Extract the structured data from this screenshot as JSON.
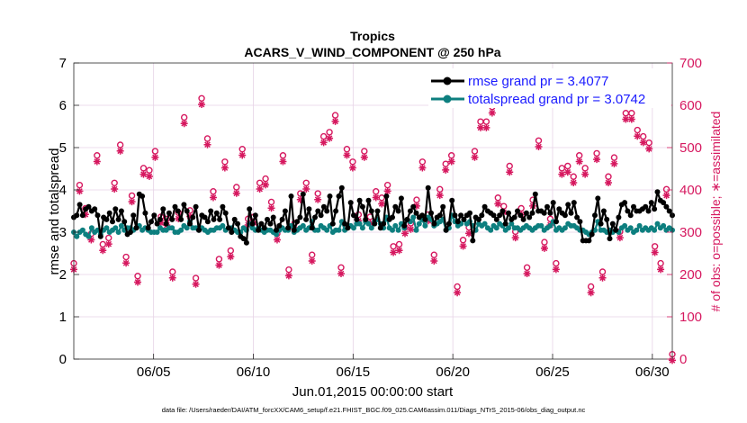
{
  "chart_data": {
    "type": "line",
    "title": "Tropics",
    "subtitle": "ACARS_V_WIND_COMPONENT @ 250 hPa",
    "xlabel": "Jun.01,2015 00:00:00 start",
    "ylabel_left": "rmse and totalspread",
    "ylabel_right": "# of obs: o=possible; ∗=assimilated",
    "xlim": [
      1,
      31
    ],
    "ylim_left": [
      0,
      7
    ],
    "ylim_right": [
      0,
      700
    ],
    "x_ticks": [
      5,
      10,
      15,
      20,
      25,
      30
    ],
    "x_tick_labels": [
      "06/05",
      "06/10",
      "06/15",
      "06/20",
      "06/25",
      "06/30"
    ],
    "y_left_ticks": [
      "0",
      "1",
      "2",
      "3",
      "4",
      "5",
      "6",
      "7"
    ],
    "y_right_ticks": [
      "0",
      "100",
      "200",
      "300",
      "400",
      "500",
      "600",
      "700"
    ],
    "grid": true,
    "legend_position": "top-right",
    "colors": {
      "rmse": "#000000",
      "spread": "#0d7f7f",
      "obs": "#d6185f",
      "legend_text": "#1a1aff"
    },
    "series": [
      {
        "name": "rmse grand pr = 3.4077",
        "values": [
          3.35,
          3.4,
          3.65,
          3.4,
          3.55,
          3.6,
          3.5,
          3.55,
          3.4,
          2.9,
          3.35,
          3.3,
          3.45,
          3.25,
          3.55,
          3.3,
          3.5,
          3.25,
          2.95,
          3.0,
          3.4,
          3.1,
          3.9,
          3.85,
          3.45,
          3.1,
          3.25,
          3.4,
          3.2,
          3.3,
          3.55,
          3.2,
          3.45,
          3.3,
          3.6,
          3.5,
          3.3,
          3.65,
          3.5,
          3.2,
          3.35,
          3.6,
          3.05,
          3.4,
          3.35,
          3.25,
          3.5,
          3.3,
          3.45,
          3.3,
          3.6,
          3.45,
          3.1,
          3.0,
          3.3,
          3.2,
          2.9,
          2.85,
          2.75,
          3.55,
          3.2,
          3.4,
          3.05,
          3.2,
          3.1,
          3.3,
          3.2,
          3.35,
          3.05,
          3.15,
          3.3,
          3.5,
          3.1,
          3.85,
          3.05,
          3.25,
          3.35,
          3.9,
          3.3,
          3.55,
          3.1,
          3.35,
          3.5,
          3.4,
          3.6,
          3.5,
          3.85,
          3.2,
          3.5,
          3.85,
          4.05,
          3.2,
          3.1,
          3.7,
          3.4,
          3.3,
          3.75,
          3.6,
          3.3,
          3.75,
          3.5,
          3.2,
          3.5,
          3.1,
          3.2,
          3.85,
          3.3,
          3.35,
          3.6,
          3.5,
          3.8,
          3.15,
          3.3,
          3.5,
          3.6,
          3.45,
          3.35,
          3.4,
          3.3,
          4.05,
          3.45,
          3.2,
          3.35,
          3.4,
          3.6,
          3.05,
          3.2,
          3.75,
          3.4,
          3.25,
          3.4,
          3.3,
          3.4,
          3.45,
          2.8,
          3.35,
          3.3,
          3.4,
          3.6,
          3.5,
          3.45,
          3.4,
          3.3,
          3.4,
          3.5,
          3.2,
          3.45,
          3.3,
          3.35,
          3.5,
          3.4,
          3.3,
          3.45,
          3.35,
          3.45,
          3.9,
          3.5,
          3.5,
          3.45,
          3.6,
          3.45,
          3.7,
          3.25,
          3.55,
          3.45,
          3.4,
          3.65,
          3.45,
          3.7,
          3.35,
          3.25,
          2.8,
          2.8,
          2.8,
          2.95,
          3.4,
          3.8,
          3.2,
          3.5,
          3.3,
          2.85,
          3.2,
          3.05,
          3.35,
          3.65,
          3.7,
          3.5,
          3.4,
          3.6,
          3.5,
          3.5,
          3.55,
          3.6,
          3.5,
          3.7,
          3.55,
          3.95,
          3.75,
          3.7,
          3.6,
          3.5,
          3.4
        ]
      },
      {
        "name": "totalspread grand pr = 3.0742",
        "values": [
          3.0,
          2.9,
          3.0,
          3.05,
          2.95,
          2.9,
          3.1,
          3.0,
          3.05,
          2.95,
          3.05,
          3.1,
          3.0,
          3.05,
          3.1,
          3.0,
          3.15,
          3.05,
          3.1,
          3.1,
          3.05,
          3.1,
          3.15,
          3.05,
          3.1,
          3.05,
          3.0,
          3.0,
          3.0,
          3.1,
          3.05,
          3.05,
          3.1,
          3.1,
          3.0,
          3.0,
          3.05,
          3.15,
          3.1,
          3.25,
          3.1,
          3.1,
          3.05,
          3.1,
          3.05,
          3.0,
          3.05,
          3.05,
          3.1,
          3.1,
          3.15,
          3.05,
          3.1,
          3.1,
          3.05,
          3.0,
          3.0,
          3.1,
          3.05,
          3.2,
          3.1,
          3.05,
          3.1,
          3.05,
          3.0,
          3.05,
          3.05,
          3.0,
          2.95,
          3.05,
          3.1,
          3.05,
          3.05,
          3.15,
          3.0,
          3.05,
          3.1,
          3.15,
          3.05,
          3.1,
          3.25,
          3.05,
          3.05,
          3.15,
          3.1,
          3.05,
          3.15,
          3.0,
          3.05,
          3.05,
          3.25,
          3.05,
          3.1,
          3.15,
          3.1,
          3.2,
          3.2,
          3.1,
          3.25,
          3.2,
          3.1,
          3.25,
          3.3,
          3.2,
          3.1,
          3.35,
          3.1,
          3.05,
          3.15,
          3.05,
          3.2,
          3.1,
          3.3,
          3.25,
          3.35,
          3.05,
          3.2,
          3.3,
          3.15,
          3.35,
          3.3,
          3.15,
          3.2,
          3.25,
          3.3,
          3.05,
          3.1,
          3.4,
          3.25,
          3.15,
          3.2,
          3.3,
          3.2,
          3.25,
          3.15,
          3.05,
          3.2,
          3.15,
          3.2,
          3.1,
          3.05,
          3.15,
          3.1,
          3.2,
          3.15,
          3.05,
          3.1,
          3.2,
          3.1,
          3.1,
          3.05,
          3.1,
          3.15,
          3.1,
          3.05,
          3.1,
          3.15,
          3.15,
          3.05,
          3.1,
          3.15,
          3.25,
          3.05,
          3.1,
          3.05,
          3.1,
          3.2,
          3.15,
          3.15,
          3.1,
          3.05,
          3.05,
          3.0,
          2.95,
          3.0,
          3.05,
          3.25,
          3.05,
          3.05,
          3.0,
          3.05,
          3.0,
          3.05,
          3.0,
          3.1,
          3.15,
          3.05,
          3.1,
          3.0,
          3.05,
          3.15,
          3.05,
          3.1,
          3.05,
          3.1,
          3.05,
          3.2,
          3.1,
          3.15,
          3.05,
          3.1,
          3.05
        ]
      }
    ],
    "obs_possible": [
      220,
      405,
      350,
      290,
      475,
      265,
      280,
      410,
      500,
      235,
      380,
      190,
      445,
      440,
      485,
      330,
      325,
      200,
      340,
      565,
      345,
      185,
      610,
      515,
      390,
      230,
      460,
      250,
      400,
      490,
      325,
      330,
      410,
      420,
      365,
      290,
      475,
      205,
      315,
      385,
      410,
      240,
      385,
      520,
      530,
      570,
      210,
      490,
      460,
      335,
      485,
      330,
      390,
      375,
      405,
      260,
      265,
      305,
      315,
      370,
      460,
      335,
      240,
      395,
      455,
      475,
      165,
      275,
      305,
      485,
      555,
      555,
      590,
      375,
      355,
      450,
      295,
      350,
      210,
      370,
      510,
      270,
      325,
      220,
      445,
      450,
      425,
      475,
      445,
      165,
      480,
      200,
      425,
      470,
      295,
      575,
      575,
      535,
      520,
      505,
      260,
      220,
      395,
      5
    ]
  }
}
